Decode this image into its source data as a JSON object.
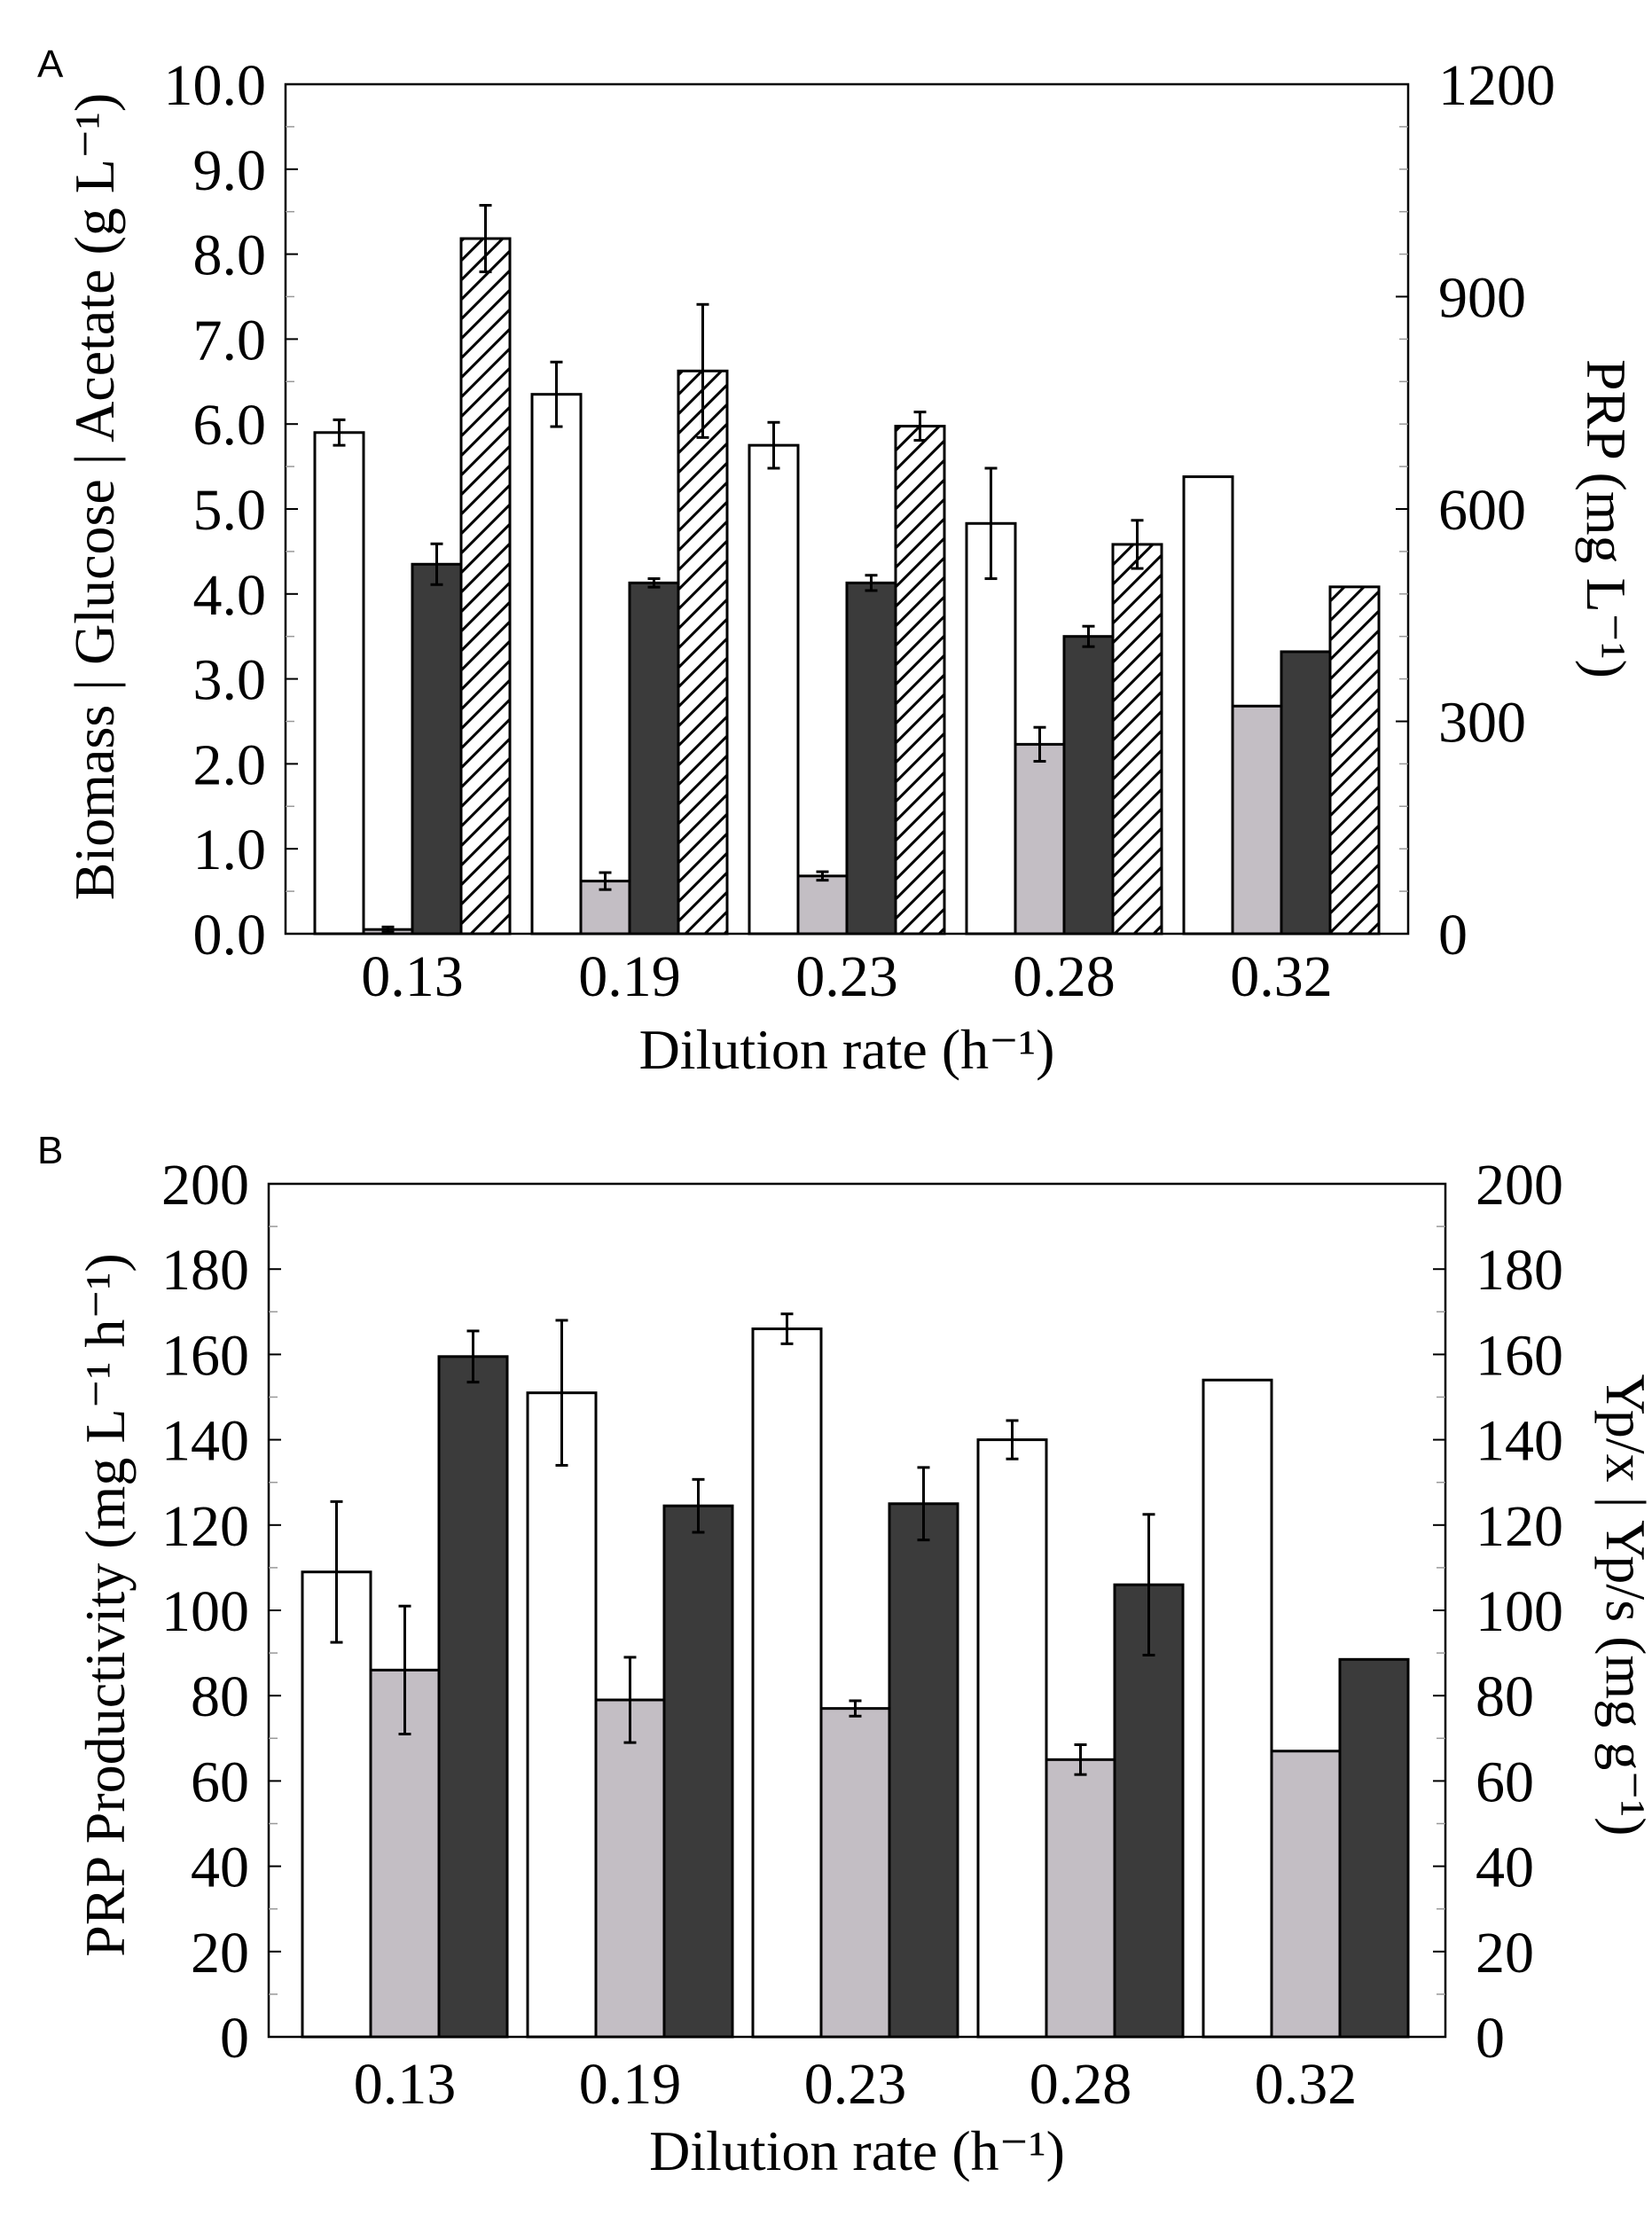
{
  "chart_data": [
    {
      "panel": "A",
      "type": "bar",
      "categories": [
        "0.13",
        "0.19",
        "0.23",
        "0.28",
        "0.32"
      ],
      "xlabel": "Dilution rate (h⁻¹)",
      "ylabel_left": "Biomass | Glucose | Acetate (g L⁻¹)",
      "ylabel_right": "PRP (mg L⁻¹)",
      "ylim_left": [
        0,
        10
      ],
      "ylim_right": [
        0,
        1200
      ],
      "yticks_left": [
        "0.0",
        "1.0",
        "2.0",
        "3.0",
        "4.0",
        "5.0",
        "6.0",
        "7.0",
        "8.0",
        "9.0",
        "10.0"
      ],
      "yticks_right": [
        "0",
        "300",
        "600",
        "900",
        "1200"
      ],
      "series": [
        {
          "name": "Biomass",
          "axis": "left",
          "fill": "#ffffff",
          "hatch": false,
          "values": [
            5.9,
            6.35,
            5.75,
            4.83,
            5.38
          ],
          "errors": [
            0.15,
            0.38,
            0.27,
            0.65,
            null
          ]
        },
        {
          "name": "Glucose",
          "axis": "left",
          "fill": "#c3bec4",
          "hatch": false,
          "values": [
            0.05,
            0.62,
            0.68,
            2.23,
            2.68
          ],
          "errors": [
            0.03,
            0.1,
            0.05,
            0.2,
            null
          ]
        },
        {
          "name": "Acetate",
          "axis": "left",
          "fill": "#3b3b3b",
          "hatch": false,
          "values": [
            4.35,
            4.13,
            4.13,
            3.5,
            3.32
          ],
          "errors": [
            0.24,
            0.05,
            0.09,
            0.12,
            null
          ]
        },
        {
          "name": "PRP",
          "axis": "right",
          "fill": "#ffffff",
          "hatch": true,
          "values": [
            982,
            795,
            717,
            550,
            490
          ],
          "errors": [
            47,
            94,
            20,
            34,
            null
          ]
        }
      ]
    },
    {
      "panel": "B",
      "type": "bar",
      "categories": [
        "0.13",
        "0.19",
        "0.23",
        "0.28",
        "0.32"
      ],
      "xlabel": "Dilution rate (h⁻¹)",
      "ylabel_left": "PRP Productivity (mg L⁻¹ h⁻¹)",
      "ylabel_right": "Yp/x | Yp/s (mg g⁻¹)",
      "ylim_left": [
        0,
        200
      ],
      "ylim_right": [
        0,
        200
      ],
      "yticks_left": [
        "0",
        "20",
        "40",
        "60",
        "80",
        "100",
        "120",
        "140",
        "160",
        "180",
        "200"
      ],
      "yticks_right": [
        "0",
        "20",
        "40",
        "60",
        "80",
        "100",
        "120",
        "140",
        "160",
        "180",
        "200"
      ],
      "series": [
        {
          "name": "PRP Productivity",
          "axis": "left",
          "fill": "#ffffff",
          "hatch": false,
          "values": [
            109,
            151,
            166,
            140,
            154
          ],
          "errors": [
            16.5,
            17,
            3.5,
            4.5,
            null
          ]
        },
        {
          "name": "Yp/x",
          "axis": "right",
          "fill": "#c3bec4",
          "hatch": false,
          "values": [
            86,
            79,
            77,
            65,
            67
          ],
          "errors": [
            15,
            10,
            1.8,
            3.5,
            null
          ]
        },
        {
          "name": "Yp/s",
          "axis": "right",
          "fill": "#3b3b3b",
          "hatch": false,
          "values": [
            159.5,
            124.5,
            125,
            106,
            88.5
          ],
          "errors": [
            6,
            6.2,
            8.5,
            16.5,
            null
          ]
        }
      ]
    }
  ]
}
